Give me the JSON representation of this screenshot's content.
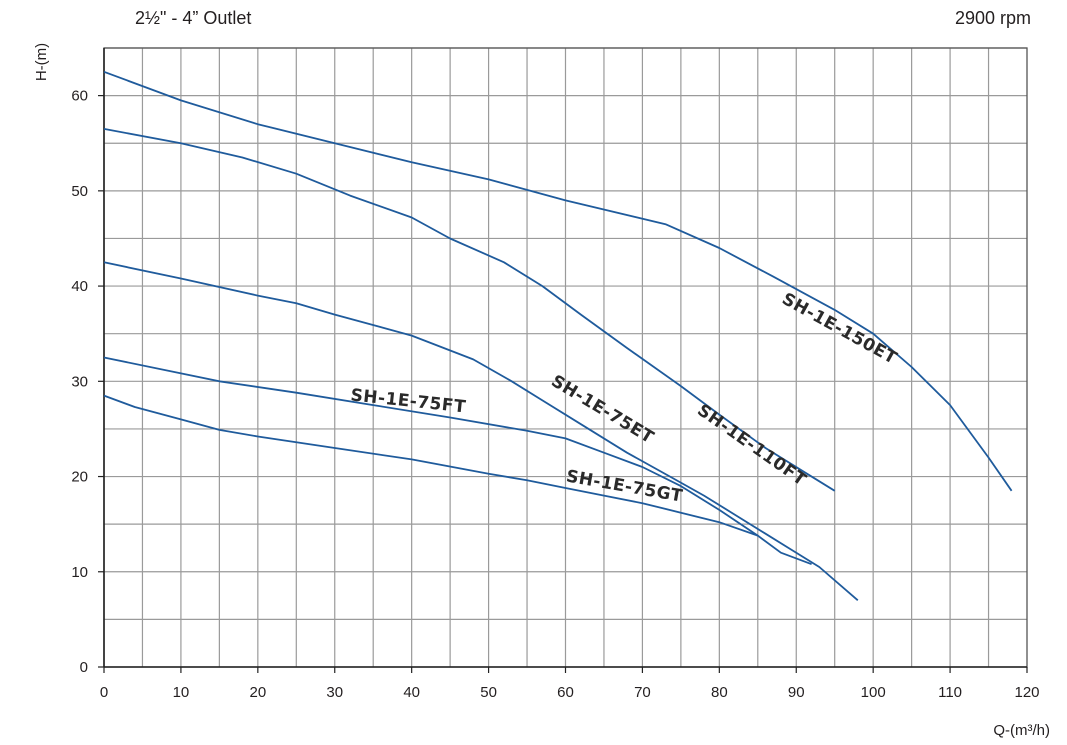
{
  "header": {
    "subtitle": "2½\" - 4” Outlet",
    "speed": "2900 rpm"
  },
  "chart_data": {
    "type": "line",
    "xlabel": "Q-(m³/h)",
    "ylabel": "H-(m)",
    "xlim": [
      0,
      120
    ],
    "ylim": [
      0,
      65
    ],
    "xticks": [
      0,
      10,
      20,
      30,
      40,
      50,
      60,
      70,
      80,
      90,
      100,
      110,
      120
    ],
    "xtick_labels": [
      "0",
      "10",
      "20",
      "30",
      "40",
      "50",
      "60",
      "70",
      "80",
      "90",
      "100",
      "110",
      "120"
    ],
    "yticks": [
      0,
      10,
      20,
      30,
      40,
      50,
      60
    ],
    "ytick_labels": [
      "0",
      "10",
      "20",
      "30",
      "40",
      "50",
      "60"
    ],
    "grid": true,
    "line_color": "#1f5b9c",
    "series": [
      {
        "name": "SH-1E-150ET",
        "points": [
          [
            0,
            62.5
          ],
          [
            10,
            59.5
          ],
          [
            20,
            57
          ],
          [
            30,
            55
          ],
          [
            40,
            53
          ],
          [
            50,
            51.2
          ],
          [
            60,
            49
          ],
          [
            73,
            46.5
          ],
          [
            80,
            44
          ],
          [
            87,
            41
          ],
          [
            95,
            37.5
          ],
          [
            100,
            35
          ],
          [
            105,
            31.5
          ],
          [
            110,
            27.5
          ],
          [
            115,
            22
          ],
          [
            118,
            18.5
          ]
        ]
      },
      {
        "name": "SH-1E-110FT",
        "points": [
          [
            0,
            56.5
          ],
          [
            10,
            55
          ],
          [
            18,
            53.5
          ],
          [
            25,
            51.8
          ],
          [
            32,
            49.5
          ],
          [
            40,
            47.2
          ],
          [
            45,
            45
          ],
          [
            52,
            42.5
          ],
          [
            57,
            40
          ],
          [
            62,
            37
          ],
          [
            68,
            33.5
          ],
          [
            75,
            29.5
          ],
          [
            80,
            26.5
          ],
          [
            86,
            23
          ],
          [
            91,
            20.5
          ],
          [
            95,
            18.5
          ]
        ]
      },
      {
        "name": "SH-1E-75ET",
        "points": [
          [
            0,
            42.5
          ],
          [
            10,
            40.8
          ],
          [
            20,
            39
          ],
          [
            25,
            38.2
          ],
          [
            30,
            37
          ],
          [
            40,
            34.8
          ],
          [
            48,
            32.3
          ],
          [
            53,
            30
          ],
          [
            57,
            28
          ],
          [
            62,
            25.5
          ],
          [
            68,
            22.5
          ],
          [
            74,
            19.8
          ],
          [
            78,
            18
          ],
          [
            82,
            16
          ],
          [
            86,
            14
          ],
          [
            89,
            12.5
          ],
          [
            93,
            10.5
          ],
          [
            98,
            7
          ]
        ]
      },
      {
        "name": "SH-1E-75FT",
        "points": [
          [
            0,
            32.5
          ],
          [
            15,
            30
          ],
          [
            25,
            28.8
          ],
          [
            35,
            27.5
          ],
          [
            45,
            26.2
          ],
          [
            55,
            24.8
          ],
          [
            60,
            24
          ],
          [
            65,
            22.5
          ],
          [
            70,
            21
          ],
          [
            75,
            19
          ],
          [
            80,
            16.5
          ],
          [
            85,
            13.8
          ],
          [
            88,
            12
          ],
          [
            92,
            10.8
          ]
        ]
      },
      {
        "name": "SH-1E-75GT",
        "points": [
          [
            0,
            28.5
          ],
          [
            4,
            27.3
          ],
          [
            10,
            26
          ],
          [
            15,
            24.9
          ],
          [
            20,
            24.2
          ],
          [
            30,
            23
          ],
          [
            40,
            21.8
          ],
          [
            50,
            20.3
          ],
          [
            55,
            19.6
          ],
          [
            60,
            18.8
          ],
          [
            65,
            18
          ],
          [
            70,
            17.2
          ],
          [
            75,
            16.2
          ],
          [
            80,
            15.2
          ],
          [
            85,
            13.8
          ]
        ]
      }
    ],
    "curve_labels": [
      {
        "text": "SH-1E-150ET",
        "x": 88,
        "y": 38.3,
        "angle": 29
      },
      {
        "text": "SH-1E-110FT",
        "x": 77,
        "y": 26.7,
        "angle": 35
      },
      {
        "text": "SH-1E-75ET",
        "x": 58,
        "y": 29.7,
        "angle": 31
      },
      {
        "text": "SH-1E-75FT",
        "x": 32,
        "y": 28.0,
        "angle": 6
      },
      {
        "text": "SH-1E-75GT",
        "x": 60,
        "y": 19.5,
        "angle": 10
      }
    ]
  }
}
